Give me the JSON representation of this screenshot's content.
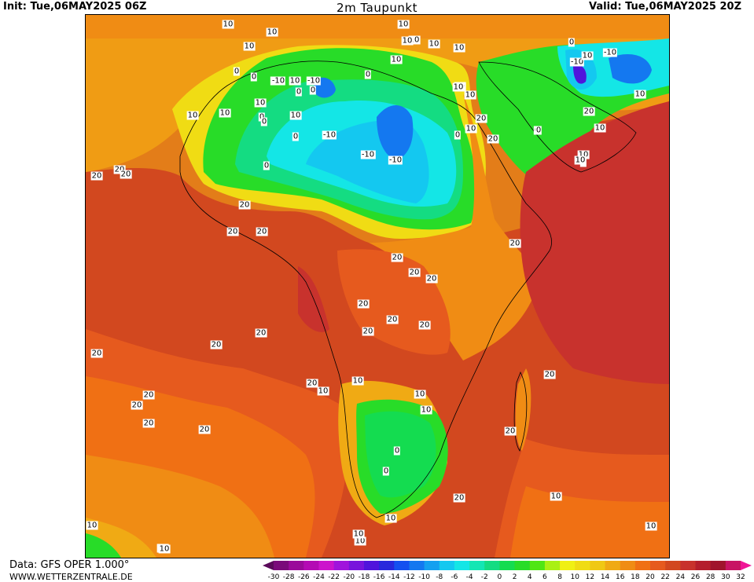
{
  "header": {
    "init": "Init: Tue,06MAY2025 06Z",
    "title": "2m Taupunkt",
    "valid": "Valid: Tue,06MAY2025 20Z"
  },
  "footer": {
    "data_source": "Data: GFS OPER 1.000°",
    "website": "WWW.WETTERZENTRALE.DE"
  },
  "colorbar": {
    "ticks": [
      "-30",
      "-28",
      "-26",
      "-24",
      "-22",
      "-20",
      "-18",
      "-16",
      "-14",
      "-12",
      "-10",
      "-8",
      "-6",
      "-4",
      "-2",
      "0",
      "2",
      "4",
      "6",
      "8",
      "10",
      "12",
      "14",
      "16",
      "18",
      "20",
      "22",
      "24",
      "26",
      "28",
      "30",
      "32"
    ],
    "colors": [
      "#5a0a5a",
      "#7a0a7a",
      "#9a0a9a",
      "#b40ab4",
      "#cc14cc",
      "#a014dc",
      "#7814dc",
      "#5014dc",
      "#2828dc",
      "#1450f0",
      "#1478f0",
      "#14a0f0",
      "#14c8f0",
      "#14e6e6",
      "#14e6b4",
      "#14dc82",
      "#14dc50",
      "#28dc28",
      "#50e614",
      "#aaf014",
      "#f0f014",
      "#f0dc14",
      "#f0c814",
      "#f0aa14",
      "#f08c14",
      "#f07014",
      "#e65a1e",
      "#d2481f",
      "#c8322d",
      "#b41e2d",
      "#a0142d",
      "#c81464",
      "#f01496"
    ]
  },
  "contour_labels": [
    {
      "t": "10"
    },
    {
      "t": "10"
    },
    {
      "t": "10"
    },
    {
      "t": "0"
    },
    {
      "t": "0"
    },
    {
      "t": "10"
    },
    {
      "t": "10"
    },
    {
      "t": "10"
    },
    {
      "t": "0"
    },
    {
      "t": "10"
    },
    {
      "t": "10"
    },
    {
      "t": "10"
    },
    {
      "t": "10"
    },
    {
      "t": "10"
    },
    {
      "t": "-10"
    },
    {
      "t": "10"
    },
    {
      "t": "-10"
    },
    {
      "t": "0"
    },
    {
      "t": "0"
    },
    {
      "t": "-10"
    },
    {
      "t": "-10"
    },
    {
      "t": "0"
    },
    {
      "t": "-10"
    },
    {
      "t": "10"
    },
    {
      "t": "10"
    },
    {
      "t": "0"
    },
    {
      "t": "0"
    },
    {
      "t": "10"
    },
    {
      "t": "20"
    },
    {
      "t": "0"
    },
    {
      "t": "-10"
    },
    {
      "t": "20"
    },
    {
      "t": "10"
    },
    {
      "t": "-10"
    },
    {
      "t": "-10"
    },
    {
      "t": "0"
    },
    {
      "t": "10"
    },
    {
      "t": "10"
    },
    {
      "t": "20"
    },
    {
      "t": "20"
    },
    {
      "t": "20"
    },
    {
      "t": "0"
    },
    {
      "t": "-10"
    },
    {
      "t": "10"
    },
    {
      "t": "0"
    },
    {
      "t": "-10"
    },
    {
      "t": "20"
    },
    {
      "t": "10"
    },
    {
      "t": "0"
    },
    {
      "t": "10"
    },
    {
      "t": "0"
    },
    {
      "t": "10"
    },
    {
      "t": "20"
    },
    {
      "t": "10"
    },
    {
      "t": "10"
    },
    {
      "t": "20"
    },
    {
      "t": "20"
    },
    {
      "t": "20"
    },
    {
      "t": "20"
    },
    {
      "t": "20"
    },
    {
      "t": "20"
    },
    {
      "t": "20"
    },
    {
      "t": "20"
    },
    {
      "t": "20"
    },
    {
      "t": "20"
    },
    {
      "t": "20"
    },
    {
      "t": "20"
    },
    {
      "t": "20"
    },
    {
      "t": "10"
    },
    {
      "t": "20"
    },
    {
      "t": "10"
    },
    {
      "t": "10"
    },
    {
      "t": "20"
    },
    {
      "t": "20"
    },
    {
      "t": "20"
    },
    {
      "t": "20"
    },
    {
      "t": "0"
    },
    {
      "t": "0"
    },
    {
      "t": "20"
    },
    {
      "t": "20"
    },
    {
      "t": "10"
    },
    {
      "t": "10"
    },
    {
      "t": "10"
    },
    {
      "t": "10"
    },
    {
      "t": "10"
    },
    {
      "t": "10"
    },
    {
      "t": "20"
    },
    {
      "t": "10"
    },
    {
      "t": "10"
    },
    {
      "t": "10"
    }
  ]
}
